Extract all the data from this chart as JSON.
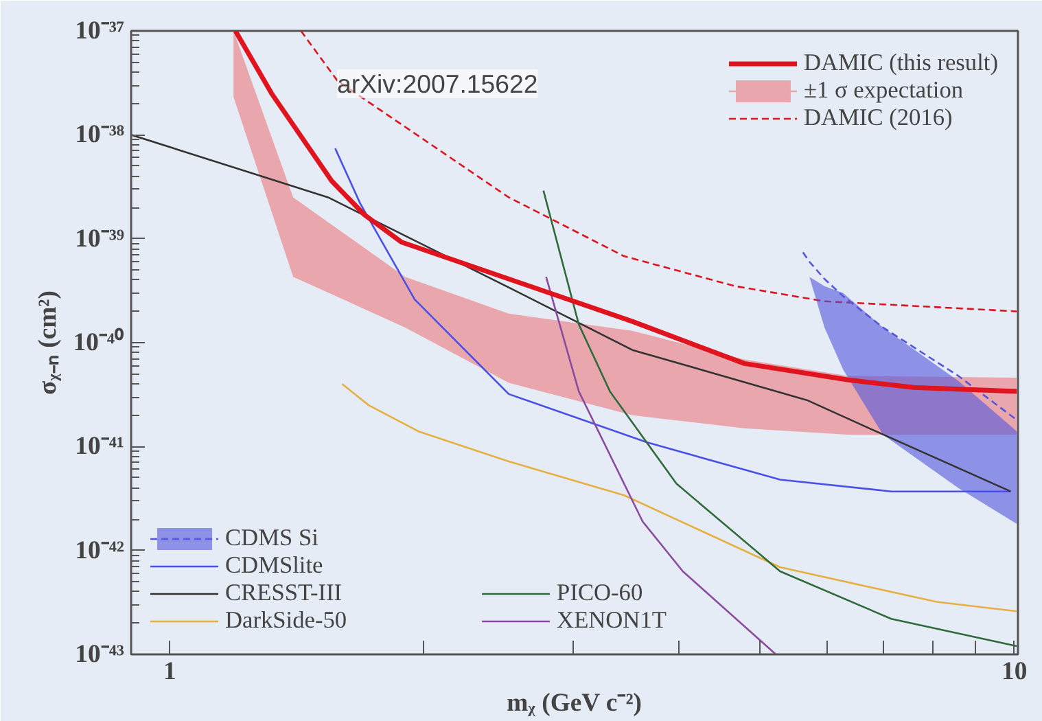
{
  "chart_data": {
    "type": "line",
    "xlabel": "mᵪ (GeV c⁻²)",
    "ylabel": "σᵪ₋ₙ (cm²)",
    "log": "xy",
    "xlim": [
      0.9,
      10.1
    ],
    "ylim": [
      1e-43,
      1e-37
    ],
    "xticks": [
      1,
      {
        "value": 2,
        "label": null
      },
      {
        "value": 3,
        "label": null
      },
      {
        "value": 4,
        "label": null
      },
      {
        "value": 5,
        "label": null
      },
      {
        "value": 6,
        "label": null
      },
      {
        "value": 7,
        "label": null
      },
      {
        "value": 8,
        "label": null
      },
      {
        "value": 9,
        "label": null
      },
      10
    ],
    "yticks": [
      {
        "value": 1e-43,
        "label": "10⁻⁴³"
      },
      {
        "value": 1e-42,
        "label": "10⁻⁴²"
      },
      {
        "value": 1e-41,
        "label": "10⁻⁴¹"
      },
      {
        "value": 1e-40,
        "label": "10⁻⁴⁰"
      },
      {
        "value": 1e-39,
        "label": "10⁻³⁹"
      },
      {
        "value": 1e-38,
        "label": "10⁻³⁸"
      },
      {
        "value": 1e-37,
        "label": "10⁻³⁷"
      }
    ],
    "annotations": [
      "arXiv:2007.15622"
    ],
    "legend": "top right",
    "line_style": "solid",
    "series": [
      {
        "name": "DAMIC (this result)",
        "color": "#e0141e",
        "x": [
          1.196,
          1.32,
          1.555,
          1.7,
          1.88,
          2.52,
          3.53,
          4.79,
          6.34,
          7.6,
          10.07
        ],
        "values": [
          1e-37,
          2.5e-38,
          3.6e-39,
          1.7e-39,
          9.3e-40,
          4.1e-40,
          1.6e-40,
          6.3e-41,
          4.4e-41,
          3.7e-41,
          3.4e-41
        ]
      },
      {
        "name": "±1 σ expectation",
        "color": "#e9a7ad",
        "x": [
          1.19,
          1.4,
          1.9,
          2.52,
          3.53,
          4.79,
          6.34,
          10.07
        ],
        "values": [
          null,
          null,
          null,
          null,
          null,
          null,
          null,
          null
        ],
        "upper": [
          1e-37,
          2.5e-39,
          4.3e-40,
          1.9e-40,
          1.3e-40,
          6.9e-41,
          4.8e-41,
          4.6e-41
        ],
        "lower": [
          2.3e-38,
          4.3e-40,
          1.4e-40,
          4.1e-41,
          2e-41,
          1.5e-41,
          1.3e-41,
          1.3e-41
        ]
      },
      {
        "name": "DAMIC (2016)",
        "color": "#e0141e",
        "line_style": "dashed",
        "x": [
          1.43,
          1.58,
          2.52,
          3.45,
          4.67,
          5.96,
          10.07
        ],
        "values": [
          1e-37,
          3.3e-38,
          2.5e-39,
          6.8e-40,
          3.5e-40,
          2.5e-40,
          2e-40
        ]
      },
      {
        "name": "CDMS Si",
        "color": "#5257dc",
        "line_style": "dashed",
        "x": [
          5.62,
          5.72,
          5.96,
          6.27,
          6.99,
          8.58,
          10.07
        ],
        "values": [
          7.4e-40,
          6e-40,
          4.1e-40,
          2.8e-40,
          1.4e-40,
          4.8e-41,
          1.8e-41
        ],
        "lower": [
          null,
          4.3e-40,
          1.4e-40,
          5.5e-41,
          1.3e-41,
          4e-42,
          1.8e-42
        ],
        "upper": [
          null,
          4.3e-40,
          3.5e-40,
          3e-40,
          1.4e-40,
          4.3e-41,
          1.4e-41
        ]
      },
      {
        "name": "CDMSlite",
        "color": "#4a50e6",
        "x": [
          1.57,
          1.68,
          1.95,
          2.52,
          3.67,
          5.28,
          7.15,
          9.9
        ],
        "values": [
          7.4e-39,
          2.2e-39,
          2.6e-40,
          3.2e-41,
          1.1e-41,
          4.8e-42,
          3.7e-42,
          3.7e-42
        ]
      },
      {
        "name": "CRESST-III",
        "color": "#333333",
        "x": [
          0.9,
          1.54,
          2.52,
          3.53,
          5.68,
          6.73,
          9.9
        ],
        "values": [
          1e-38,
          2.5e-39,
          3.4e-40,
          8.5e-41,
          2.8e-41,
          1.5e-41,
          3.7e-42
        ]
      },
      {
        "name": "DarkSide-50",
        "color": "#e5b041",
        "x": [
          1.6,
          1.72,
          1.97,
          2.52,
          3.45,
          5.28,
          8.09,
          10.07
        ],
        "values": [
          4e-41,
          2.5e-41,
          1.4e-41,
          7.2e-42,
          3.4e-42,
          6.9e-43,
          3.2e-43,
          2.6e-43
        ]
      },
      {
        "name": "PICO-60",
        "color": "#2f6b3a",
        "x": [
          2.77,
          3.05,
          3.32,
          3.98,
          5.28,
          7.15,
          10.07
        ],
        "values": [
          2.9e-39,
          1.5e-40,
          3.4e-41,
          4.4e-42,
          6.3e-43,
          2.2e-43,
          1.2e-43
        ]
      },
      {
        "name": "XENON1T",
        "color": "#8a4aa0",
        "x": [
          2.79,
          3.05,
          3.63,
          4.05,
          5.22
        ],
        "values": [
          4.3e-40,
          3.4e-41,
          1.9e-42,
          6.3e-43,
          1e-43
        ]
      }
    ]
  }
}
